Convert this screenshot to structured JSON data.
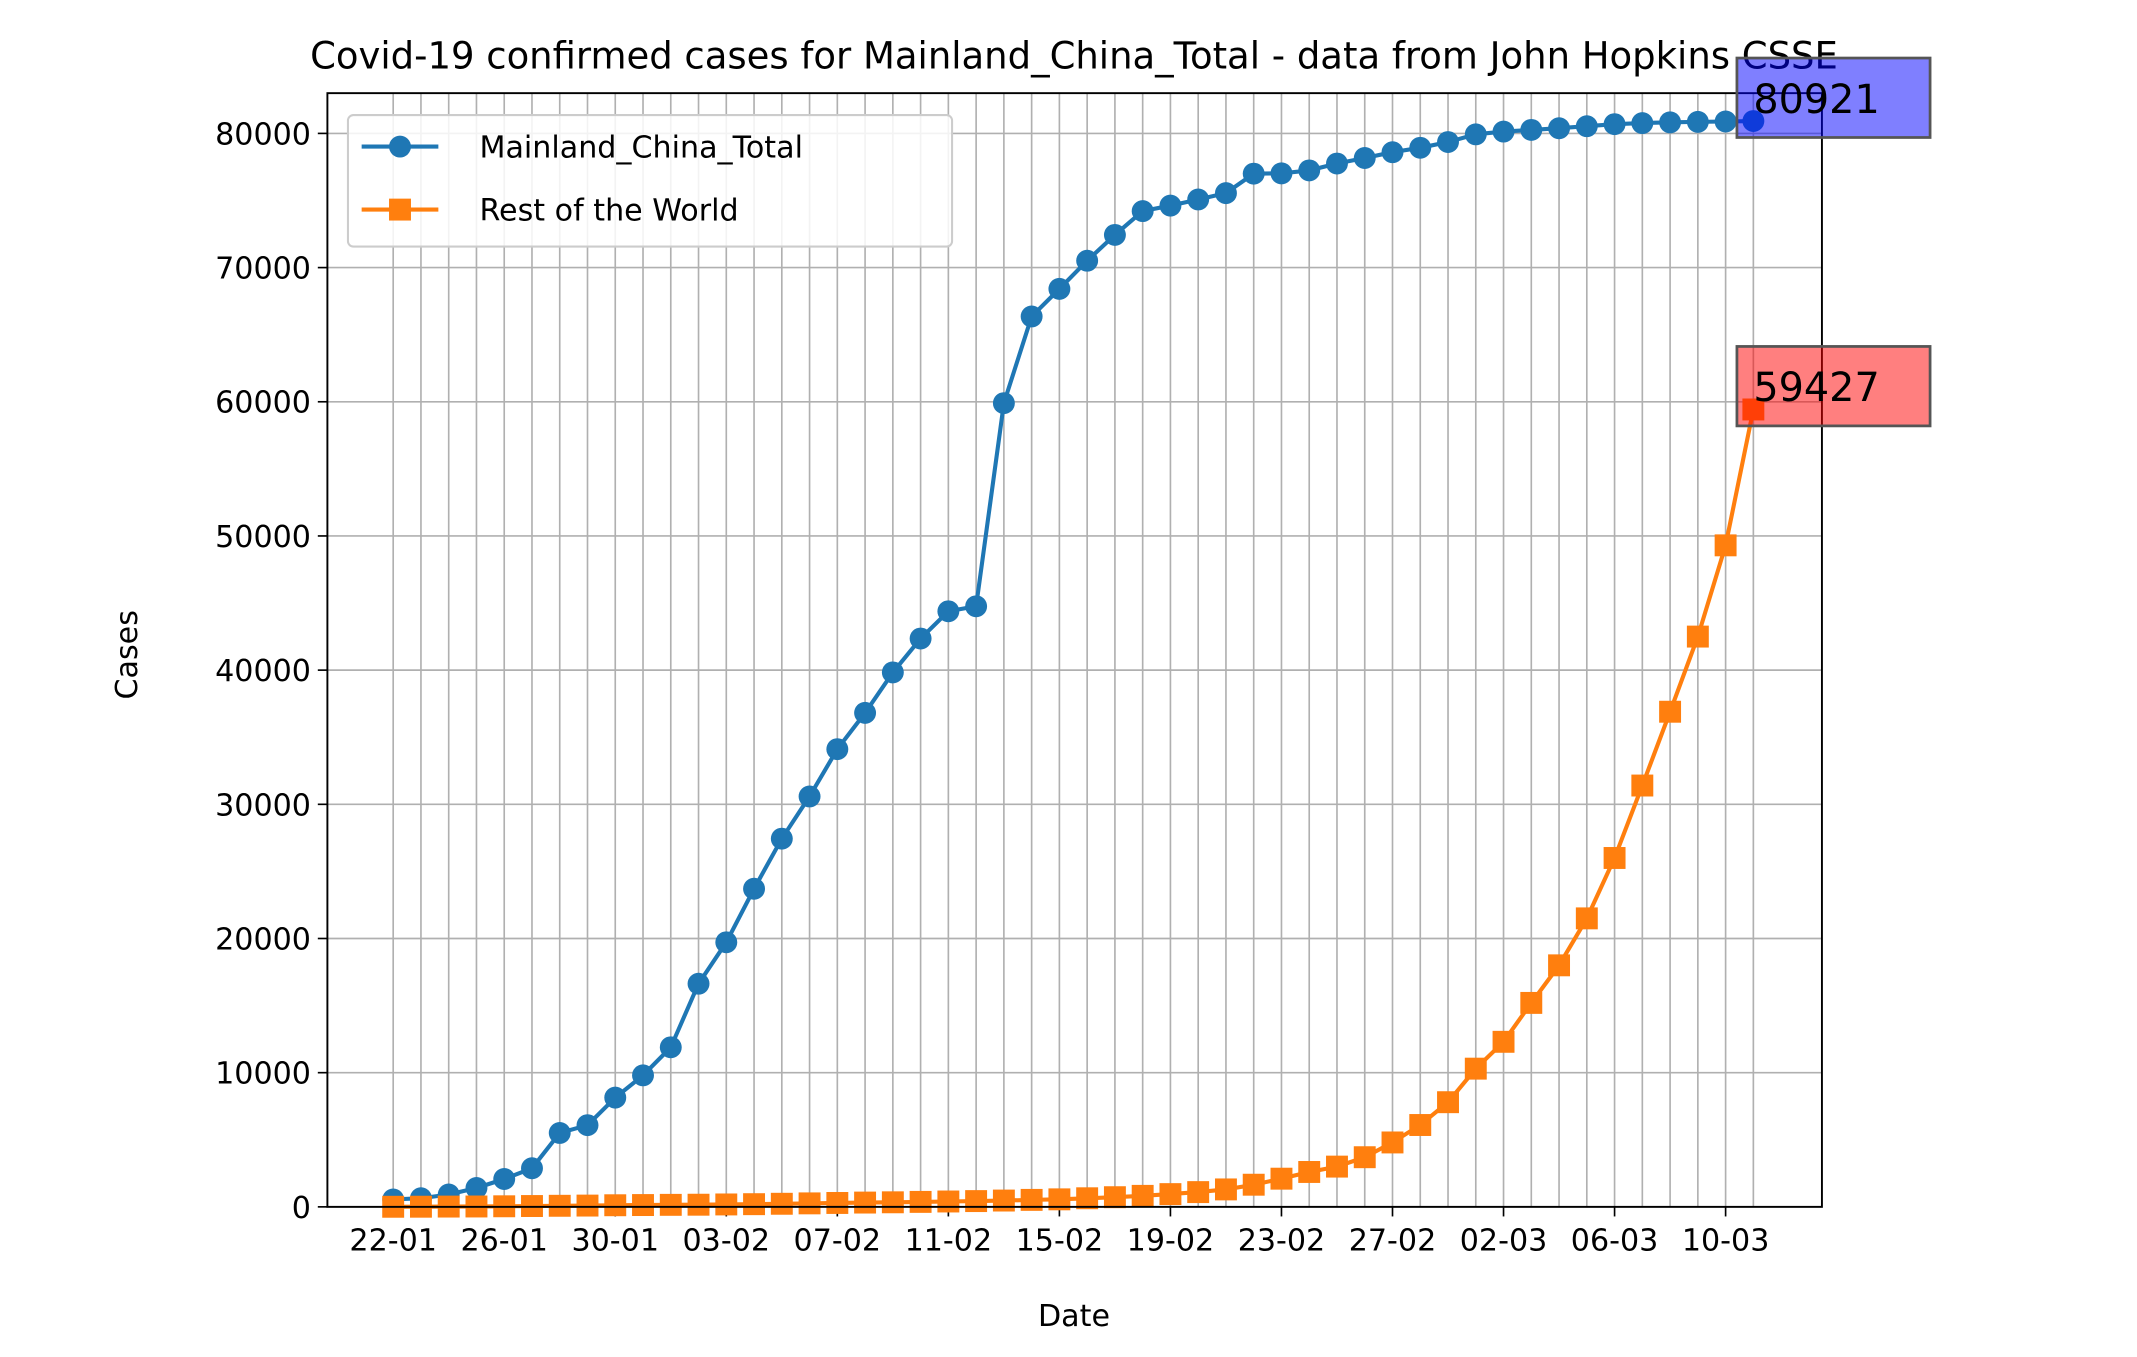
{
  "chart_data": {
    "type": "line",
    "title": "Covid-19 confirmed cases for Mainland_China_Total - data from John Hopkins CSSE",
    "x_label": "Date",
    "y_label": "Cases",
    "categories": [
      "22-01",
      null,
      null,
      null,
      "26-01",
      null,
      null,
      null,
      "30-01",
      null,
      null,
      null,
      "03-02",
      null,
      null,
      null,
      "07-02",
      null,
      null,
      null,
      "11-02",
      null,
      null,
      null,
      "15-02",
      null,
      null,
      null,
      "19-02",
      null,
      null,
      null,
      "23-02",
      null,
      null,
      null,
      "27-02",
      null,
      null,
      null,
      "02-03",
      null,
      null,
      null,
      "06-03",
      null,
      null,
      null,
      "10-03",
      null
    ],
    "series": [
      {
        "name": "Mainland_China_Total",
        "color": "#1f77b4",
        "marker": "circle",
        "values": [
          548,
          643,
          920,
          1406,
          2075,
          2877,
          5509,
          6087,
          8141,
          9802,
          11891,
          16630,
          19716,
          23707,
          27440,
          30587,
          34110,
          36814,
          39829,
          42354,
          44386,
          44759,
          59895,
          66358,
          68413,
          70513,
          72434,
          74211,
          74619,
          75077,
          75550,
          77001,
          77022,
          77241,
          77754,
          78166,
          78600,
          78928,
          79356,
          79932,
          80136,
          80261,
          80386,
          80537,
          80690,
          80770,
          80823,
          80860,
          80887,
          80921
        ]
      },
      {
        "name": "Rest of the World",
        "color": "#ff7f0e",
        "marker": "square",
        "values": [
          7,
          11,
          21,
          28,
          43,
          62,
          80,
          95,
          120,
          135,
          150,
          160,
          180,
          200,
          230,
          260,
          290,
          320,
          340,
          370,
          400,
          430,
          470,
          520,
          560,
          640,
          720,
          820,
          950,
          1100,
          1300,
          1650,
          2100,
          2600,
          3000,
          3700,
          4800,
          6100,
          7800,
          10300,
          12300,
          15200,
          18000,
          21500,
          26000,
          31400,
          36900,
          42500,
          49300,
          59427
        ]
      }
    ],
    "annotations": [
      {
        "text": "80921",
        "color": "#0000ff"
      },
      {
        "text": "59427",
        "color": "#ff0000"
      }
    ],
    "ylim": [
      0,
      83000
    ],
    "yticks": [
      0,
      10000,
      20000,
      30000,
      40000,
      50000,
      60000,
      70000,
      80000
    ],
    "grid": true,
    "legend": "upper left"
  }
}
